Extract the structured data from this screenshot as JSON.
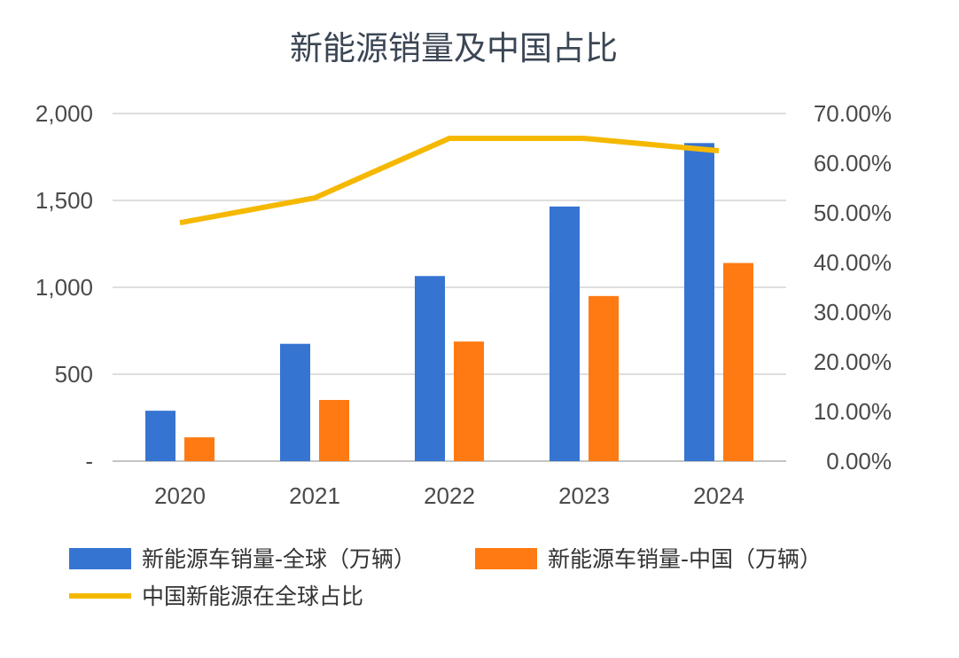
{
  "chart_data": {
    "type": "bar",
    "title": "新能源销量及中国占比",
    "categories": [
      "2020",
      "2021",
      "2022",
      "2023",
      "2024"
    ],
    "series": [
      {
        "name": "新能源车销量-全球（万辆）",
        "kind": "bar",
        "axis": "left",
        "color": "#3674d1",
        "values": [
          290,
          675,
          1065,
          1465,
          1830
        ]
      },
      {
        "name": "新能源车销量-中国（万辆）",
        "kind": "bar",
        "axis": "left",
        "color": "#ff7a12",
        "values": [
          137,
          352,
          688,
          950,
          1140
        ]
      },
      {
        "name": "中国新能源在全球占比",
        "kind": "line",
        "axis": "right",
        "color": "#f5b800",
        "values": [
          0.48,
          0.53,
          0.65,
          0.65,
          0.625
        ]
      }
    ],
    "y_left": {
      "ylim": [
        0,
        2000
      ],
      "ticks": [
        0,
        500,
        1000,
        1500,
        2000
      ],
      "tick_labels": [
        "-",
        "500",
        "1,000",
        "1,500",
        "2,000"
      ]
    },
    "y_right": {
      "ylim": [
        0,
        0.7
      ],
      "ticks": [
        0,
        0.1,
        0.2,
        0.3,
        0.4,
        0.5,
        0.6,
        0.7
      ],
      "tick_labels": [
        "0.00%",
        "10.00%",
        "20.00%",
        "30.00%",
        "40.00%",
        "50.00%",
        "60.00%",
        "70.00%"
      ]
    },
    "grid": true,
    "legend_position": "bottom"
  }
}
